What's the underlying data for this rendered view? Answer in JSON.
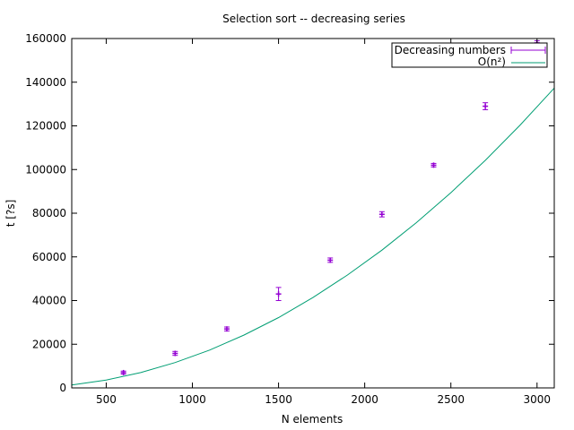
{
  "chart_data": {
    "type": "scatter",
    "title": "Selection sort -- decreasing series",
    "xlabel": "N elements",
    "ylabel": "t [?s]",
    "xlim": [
      300,
      3100
    ],
    "ylim": [
      0,
      160000
    ],
    "x_ticks": [
      500,
      1000,
      1500,
      2000,
      2500,
      3000
    ],
    "y_ticks": [
      0,
      20000,
      40000,
      60000,
      80000,
      100000,
      120000,
      140000,
      160000
    ],
    "grid": false,
    "legend_position": "top-right",
    "series": [
      {
        "name": "Decreasing numbers",
        "kind": "errorbars",
        "color": "#9400d3",
        "points": [
          {
            "x": 600,
            "y": 7000,
            "err": 700
          },
          {
            "x": 900,
            "y": 15800,
            "err": 900
          },
          {
            "x": 1200,
            "y": 27000,
            "err": 900
          },
          {
            "x": 1500,
            "y": 43000,
            "err": 3000
          },
          {
            "x": 1800,
            "y": 58500,
            "err": 1000
          },
          {
            "x": 2100,
            "y": 79500,
            "err": 1200
          },
          {
            "x": 2400,
            "y": 102000,
            "err": 800
          },
          {
            "x": 2700,
            "y": 129000,
            "err": 1600
          },
          {
            "x": 3000,
            "y": 158000,
            "err": 1000
          }
        ]
      },
      {
        "name": "O(n²)",
        "kind": "curve",
        "color": "#009e73",
        "x": [
          300,
          500,
          700,
          900,
          1100,
          1300,
          1500,
          1700,
          1900,
          2100,
          2300,
          2500,
          2700,
          2900,
          3100
        ],
        "y": [
          1300,
          3600,
          7000,
          11600,
          17300,
          24200,
          32200,
          41400,
          51700,
          63100,
          75700,
          89400,
          104200,
          120200,
          137300
        ]
      }
    ]
  }
}
